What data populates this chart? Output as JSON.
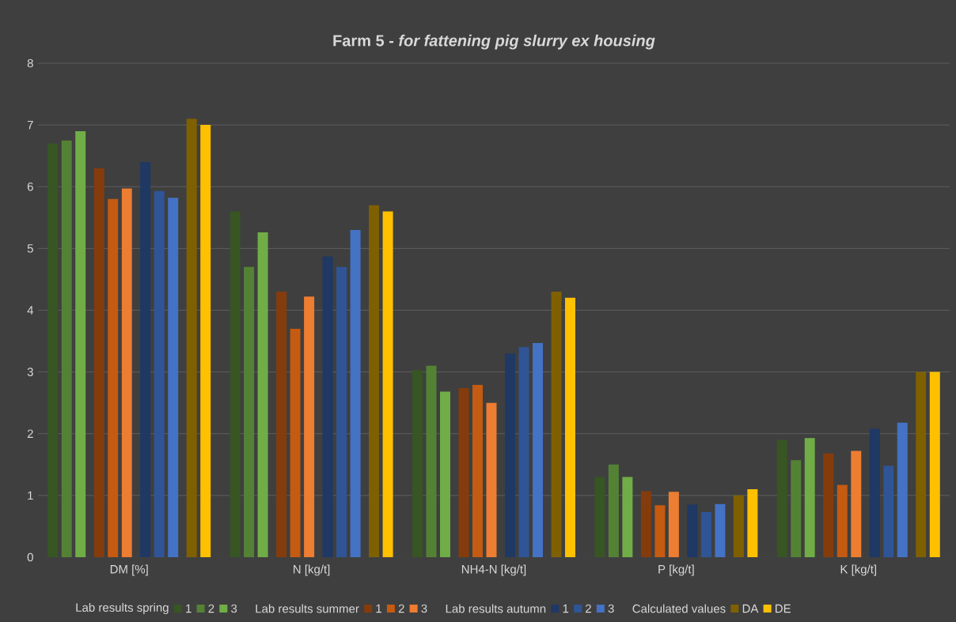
{
  "chart_data": {
    "type": "bar",
    "title": "Farm 5 - *for fattening pig slurry ex housing*",
    "categories": [
      "DM [%]",
      "N [kg/t]",
      "NH4-N [kg/t]",
      "P [kg/t]",
      "K [kg/t]"
    ],
    "series": [
      {
        "name": "1",
        "color": "#375623",
        "values": [
          6.7,
          5.6,
          3.03,
          1.3,
          1.9
        ]
      },
      {
        "name": "2",
        "color": "#548235",
        "values": [
          6.75,
          4.7,
          3.1,
          1.5,
          1.57
        ]
      },
      {
        "name": "3",
        "color": "#70ad47",
        "values": [
          6.9,
          5.26,
          2.68,
          1.3,
          1.93
        ]
      },
      {
        "name": "1",
        "color": "#843c0c",
        "values": [
          6.3,
          4.3,
          2.74,
          1.07,
          1.68
        ]
      },
      {
        "name": "2",
        "color": "#c55a11",
        "values": [
          5.8,
          3.7,
          2.79,
          0.84,
          1.17
        ]
      },
      {
        "name": "3",
        "color": "#ed7d31",
        "values": [
          5.97,
          4.22,
          2.5,
          1.06,
          1.72
        ]
      },
      {
        "name": "1",
        "color": "#1f3864",
        "values": [
          6.4,
          4.87,
          3.3,
          0.85,
          2.08
        ]
      },
      {
        "name": "2",
        "color": "#2f5597",
        "values": [
          5.93,
          4.7,
          3.4,
          0.73,
          1.48
        ]
      },
      {
        "name": "3",
        "color": "#4472c4",
        "values": [
          5.82,
          5.3,
          3.47,
          0.86,
          2.18
        ]
      },
      {
        "name": "DA",
        "color": "#7f6000",
        "values": [
          7.1,
          5.7,
          4.3,
          1.0,
          3.0
        ]
      },
      {
        "name": "DE",
        "color": "#ffc000",
        "values": [
          7.0,
          5.6,
          4.2,
          1.1,
          3.0
        ]
      }
    ],
    "ylim": [
      0,
      8
    ],
    "yticks": [
      0,
      1,
      2,
      3,
      4,
      5,
      6,
      7,
      8
    ],
    "grid": "y",
    "legend": "bottom",
    "annotations": [
      "Lab results spring",
      "Lab results summer",
      "Lab results autumn",
      "Calculated values"
    ]
  }
}
